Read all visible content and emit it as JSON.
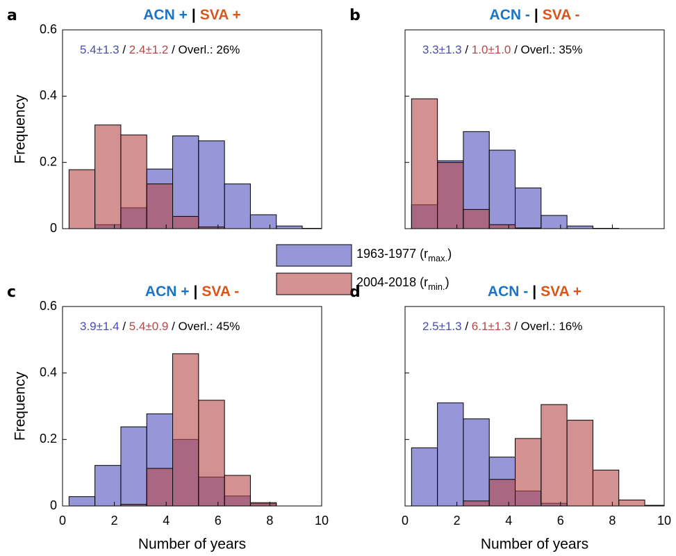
{
  "chart_data": [
    {
      "type": "histogram",
      "panel_label": "a",
      "title_parts": [
        "ACN +",
        "|",
        "SVA +"
      ],
      "title_colors": [
        "#1c74c4",
        "#000000",
        "#d8561c"
      ],
      "annotation_parts": [
        "5.4±1.3",
        " / ",
        "2.4±1.2",
        " / Overl.: 26%"
      ],
      "annotation_colors": [
        "#4a4ab0",
        "#000000",
        "#b04848",
        "#000000"
      ],
      "ylabel": "Frequency",
      "show_ytick_labels": true,
      "show_xtick_labels": false,
      "xlim": [
        0,
        10
      ],
      "xticks": [
        0,
        2,
        4,
        6,
        8,
        10
      ],
      "ylim": [
        0,
        0.6
      ],
      "yticks": [
        0,
        0.2,
        0.4,
        0.6
      ],
      "bins": [
        0.25,
        1.25,
        2.25,
        3.25,
        4.25,
        5.25,
        6.25,
        7.25,
        8.25,
        9.25,
        10.25
      ],
      "series": [
        {
          "name": "1963-1977 (r",
          "name_subscript": "max.",
          "name_suffix": ")",
          "color": "#5050c0",
          "values": [
            0,
            0.012,
            0.063,
            0.18,
            0.28,
            0.265,
            0.135,
            0.042,
            0.008,
            0.001
          ]
        },
        {
          "name": "2004-2018 (r",
          "name_subscript": "min.",
          "name_suffix": ")",
          "color": "#b84848",
          "values": [
            0.178,
            0.313,
            0.283,
            0.135,
            0.037,
            0.005,
            0,
            0,
            0,
            0
          ]
        }
      ]
    },
    {
      "type": "histogram",
      "panel_label": "b",
      "title_parts": [
        "ACN -",
        "|",
        "SVA -"
      ],
      "title_colors": [
        "#1c74c4",
        "#000000",
        "#d8561c"
      ],
      "annotation_parts": [
        "3.3±1.3",
        " / ",
        "1.0±1.0",
        " / Overl.: 35%"
      ],
      "annotation_colors": [
        "#4a4ab0",
        "#000000",
        "#b04848",
        "#000000"
      ],
      "show_ytick_labels": false,
      "show_xtick_labels": false,
      "xlim": [
        0,
        10
      ],
      "xticks": [
        0,
        2,
        4,
        6,
        8,
        10
      ],
      "ylim": [
        0,
        0.6
      ],
      "yticks": [
        0,
        0.2,
        0.4,
        0.6
      ],
      "bins": [
        0.25,
        1.25,
        2.25,
        3.25,
        4.25,
        5.25,
        6.25,
        7.25,
        8.25,
        9.25,
        10.25
      ],
      "series": [
        {
          "name": "1963-1977 (r",
          "name_subscript": "max.",
          "name_suffix": ")",
          "color": "#5050c0",
          "values": [
            0.072,
            0.205,
            0.293,
            0.237,
            0.123,
            0.04,
            0.008,
            0.001,
            0,
            0
          ]
        },
        {
          "name": "2004-2018 (r",
          "name_subscript": "min.",
          "name_suffix": ")",
          "color": "#b84848",
          "values": [
            0.392,
            0.2,
            0.058,
            0.012,
            0.002,
            0,
            0,
            0,
            0,
            0
          ]
        }
      ]
    },
    {
      "type": "histogram",
      "panel_label": "c",
      "title_parts": [
        "ACN +",
        "|",
        "SVA -"
      ],
      "title_colors": [
        "#1c74c4",
        "#000000",
        "#d8561c"
      ],
      "annotation_parts": [
        "3.9±1.4",
        " / ",
        "5.4±0.9",
        " / Overl.: 45%"
      ],
      "annotation_colors": [
        "#4a4ab0",
        "#000000",
        "#b04848",
        "#000000"
      ],
      "ylabel": "Frequency",
      "xlabel": "Number of years",
      "show_ytick_labels": true,
      "show_xtick_labels": true,
      "xlim": [
        0,
        10
      ],
      "xticks": [
        0,
        2,
        4,
        6,
        8,
        10
      ],
      "ylim": [
        0,
        0.6
      ],
      "yticks": [
        0,
        0.2,
        0.4,
        0.6
      ],
      "bins": [
        0.25,
        1.25,
        2.25,
        3.25,
        4.25,
        5.25,
        6.25,
        7.25,
        8.25,
        9.25,
        10.25
      ],
      "series": [
        {
          "name": "1963-1977 (r",
          "name_subscript": "max.",
          "name_suffix": ")",
          "color": "#5050c0",
          "values": [
            0.028,
            0.122,
            0.238,
            0.277,
            0.2,
            0.087,
            0.03,
            0.007,
            0,
            0
          ]
        },
        {
          "name": "2004-2018 (r",
          "name_subscript": "min.",
          "name_suffix": ")",
          "color": "#b84848",
          "values": [
            0,
            0,
            0.005,
            0.113,
            0.458,
            0.318,
            0.092,
            0.01,
            0,
            0
          ]
        }
      ]
    },
    {
      "type": "histogram",
      "panel_label": "d",
      "title_parts": [
        "ACN -",
        "|",
        "SVA +"
      ],
      "title_colors": [
        "#1c74c4",
        "#000000",
        "#d8561c"
      ],
      "annotation_parts": [
        "2.5±1.3",
        " / ",
        "6.1±1.3",
        " / Overl.: 16%"
      ],
      "annotation_colors": [
        "#4a4ab0",
        "#000000",
        "#b04848",
        "#000000"
      ],
      "xlabel": "Number of years",
      "show_ytick_labels": false,
      "show_xtick_labels": true,
      "xlim": [
        0,
        10
      ],
      "xticks": [
        0,
        2,
        4,
        6,
        8,
        10
      ],
      "ylim": [
        0,
        0.6
      ],
      "yticks": [
        0,
        0.2,
        0.4,
        0.6
      ],
      "bins": [
        0.25,
        1.25,
        2.25,
        3.25,
        4.25,
        5.25,
        6.25,
        7.25,
        8.25,
        9.25,
        10.25
      ],
      "series": [
        {
          "name": "1963-1977 (r",
          "name_subscript": "max.",
          "name_suffix": ")",
          "color": "#5050c0",
          "values": [
            0.175,
            0.31,
            0.262,
            0.147,
            0.045,
            0.008,
            0,
            0,
            0,
            0
          ]
        },
        {
          "name": "2004-2018 (r",
          "name_subscript": "min.",
          "name_suffix": ")",
          "color": "#b84848",
          "values": [
            0,
            0,
            0.015,
            0.08,
            0.203,
            0.305,
            0.258,
            0.108,
            0.018,
            0.002
          ]
        }
      ]
    }
  ]
}
